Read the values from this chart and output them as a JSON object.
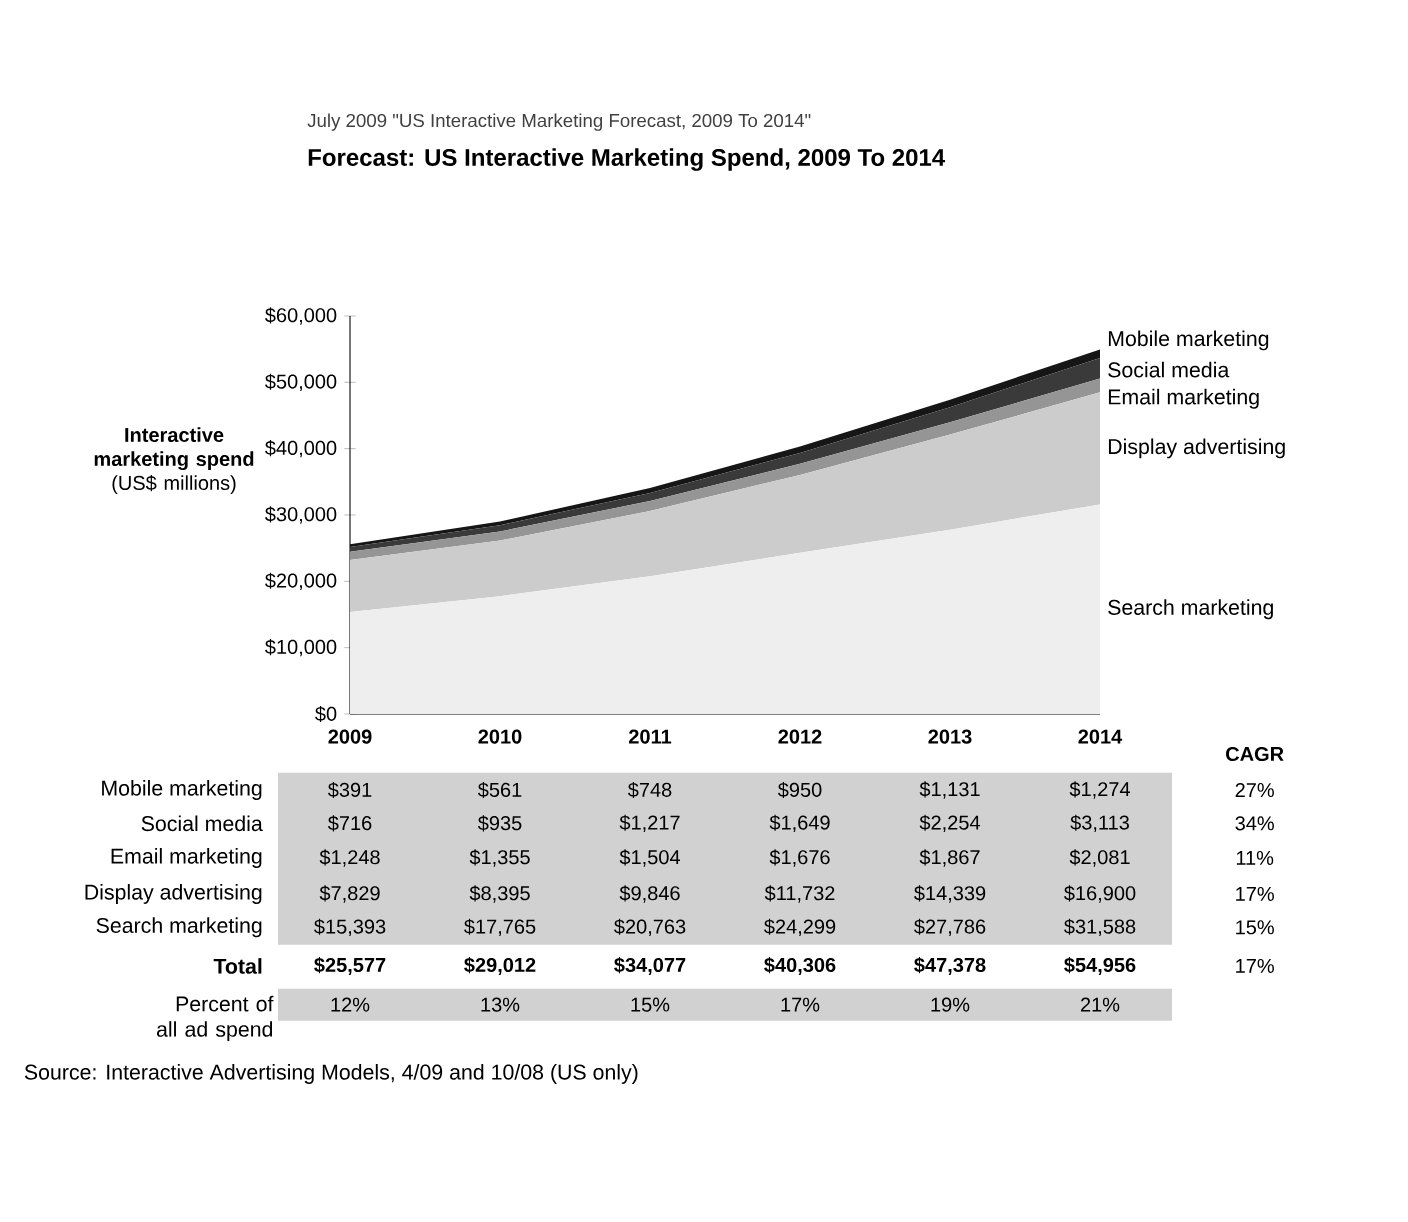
{
  "chart_data": {
    "type": "area",
    "stacked": true,
    "title": "Forecast: US Interactive Marketing Spend, 2009 To 2014",
    "subtitle": "July 2009 \"US Interactive Marketing Forecast, 2009 To 2014\"",
    "ylabel": "**Interactive marketing spend** (US$ millions)",
    "categories": [
      "2009",
      "2010",
      "2011",
      "2012",
      "2013",
      "2014"
    ],
    "ylim": [
      0,
      60000
    ],
    "yticks": [
      {
        "value": 0,
        "label": "$0"
      },
      {
        "value": 10000,
        "label": "$10,000"
      },
      {
        "value": 20000,
        "label": "$20,000"
      },
      {
        "value": 30000,
        "label": "$30,000"
      },
      {
        "value": 40000,
        "label": "$40,000"
      },
      {
        "value": 50000,
        "label": "$50,000"
      },
      {
        "value": 60000,
        "label": "$60,000"
      }
    ],
    "series": [
      {
        "name": "Search marketing",
        "color": "#eeeeee",
        "values": [
          15393,
          17765,
          20763,
          24299,
          27786,
          31588
        ],
        "value_labels": [
          "$15,393",
          "$17,765",
          "$20,763",
          "$24,299",
          "$27,786",
          "$31,588"
        ]
      },
      {
        "name": "Display advertising",
        "color": "#cccccc",
        "values": [
          7829,
          8395,
          9846,
          11732,
          14339,
          16900
        ],
        "value_labels": [
          "$7,829",
          "$8,395",
          "$9,846",
          "$11,732",
          "$14,339",
          "$16,900"
        ]
      },
      {
        "name": "Email marketing",
        "color": "#959595",
        "values": [
          1248,
          1355,
          1504,
          1676,
          1867,
          2081
        ],
        "value_labels": [
          "$1,248",
          "$1,355",
          "$1,504",
          "$1,676",
          "$1,867",
          "$2,081"
        ]
      },
      {
        "name": "Social media",
        "color": "#3a3a3a",
        "values": [
          716,
          935,
          1217,
          1649,
          2254,
          3113
        ],
        "value_labels": [
          "$716",
          "$935",
          "$1,217",
          "$1,649",
          "$2,254",
          "$3,113"
        ]
      },
      {
        "name": "Mobile marketing",
        "color": "#161616",
        "values": [
          391,
          561,
          748,
          950,
          1131,
          1274
        ],
        "value_labels": [
          "$391",
          "$561",
          "$748",
          "$950",
          "$1,131",
          "$1,274"
        ]
      }
    ],
    "annotations": [
      "CAGR",
      "27%",
      "34%",
      "11%",
      "17%",
      "15%",
      "Total",
      "$25,577",
      "$29,012",
      "$34,077",
      "$40,306",
      "$47,378",
      "$54,956",
      "17%",
      "Percent of all ad spend",
      "12%",
      "13%",
      "15%",
      "17%",
      "19%",
      "21%",
      "Source: Interactive Advertising Models, 4/09 and 10/08 (US only)"
    ]
  }
}
